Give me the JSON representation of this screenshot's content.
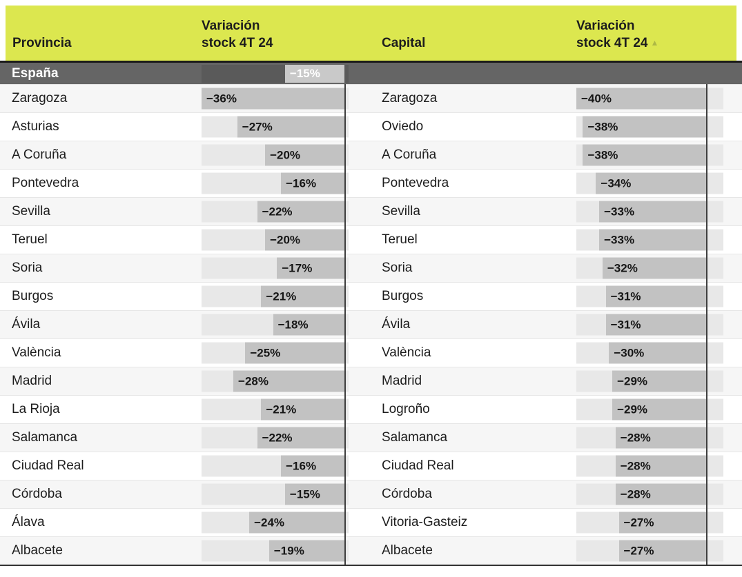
{
  "header": {
    "province_label": "Provincia",
    "variation_line1": "Variación",
    "variation_line2": "stock 4T 24",
    "capital_label": "Capital",
    "sort_indicator": "▲"
  },
  "summary_row": {
    "label": "España",
    "variation_pct": -15
  },
  "chart_data": {
    "type": "table",
    "columns": [
      "Provincia",
      "Variación stock 4T 24",
      "Capital",
      "Variación stock 4T 24"
    ],
    "unit": "%",
    "sort": "capital variation ascending",
    "summary": {
      "province": "España",
      "province_variation_pct": -15
    },
    "axes": {
      "province": {
        "min": -36,
        "max": 1
      },
      "capital": {
        "min": -40,
        "max": 5
      }
    },
    "rows": [
      {
        "province": "Zaragoza",
        "province_variation_pct": -36,
        "capital": "Zaragoza",
        "capital_variation_pct": -40
      },
      {
        "province": "Asturias",
        "province_variation_pct": -27,
        "capital": "Oviedo",
        "capital_variation_pct": -38
      },
      {
        "province": "A Coruña",
        "province_variation_pct": -20,
        "capital": "A Coruña",
        "capital_variation_pct": -38
      },
      {
        "province": "Pontevedra",
        "province_variation_pct": -16,
        "capital": "Pontevedra",
        "capital_variation_pct": -34
      },
      {
        "province": "Sevilla",
        "province_variation_pct": -22,
        "capital": "Sevilla",
        "capital_variation_pct": -33
      },
      {
        "province": "Teruel",
        "province_variation_pct": -20,
        "capital": "Teruel",
        "capital_variation_pct": -33
      },
      {
        "province": "Soria",
        "province_variation_pct": -17,
        "capital": "Soria",
        "capital_variation_pct": -32
      },
      {
        "province": "Burgos",
        "province_variation_pct": -21,
        "capital": "Burgos",
        "capital_variation_pct": -31
      },
      {
        "province": "Ávila",
        "province_variation_pct": -18,
        "capital": "Ávila",
        "capital_variation_pct": -31
      },
      {
        "province": "València",
        "province_variation_pct": -25,
        "capital": "València",
        "capital_variation_pct": -30
      },
      {
        "province": "Madrid",
        "province_variation_pct": -28,
        "capital": "Madrid",
        "capital_variation_pct": -29
      },
      {
        "province": "La Rioja",
        "province_variation_pct": -21,
        "capital": "Logroño",
        "capital_variation_pct": -29
      },
      {
        "province": "Salamanca",
        "province_variation_pct": -22,
        "capital": "Salamanca",
        "capital_variation_pct": -28
      },
      {
        "province": "Ciudad Real",
        "province_variation_pct": -16,
        "capital": "Ciudad Real",
        "capital_variation_pct": -28
      },
      {
        "province": "Córdoba",
        "province_variation_pct": -15,
        "capital": "Córdoba",
        "capital_variation_pct": -28
      },
      {
        "province": "Álava",
        "province_variation_pct": -24,
        "capital": "Vitoria-Gasteiz",
        "capital_variation_pct": -27
      },
      {
        "province": "Albacete",
        "province_variation_pct": -19,
        "capital": "Albacete",
        "capital_variation_pct": -27
      }
    ]
  },
  "colors": {
    "header_bg": "#dce74f",
    "header_text": "#1d1d1d",
    "sort_arrow": "#adb845",
    "summary_bg": "#656565",
    "summary_bar": "#c9c9c9",
    "row_stripe": "#f6f6f6",
    "bar_track": "#e8e8e8",
    "bar_fill": "#c2c2c2",
    "zero_line": "#3e3e3e"
  }
}
